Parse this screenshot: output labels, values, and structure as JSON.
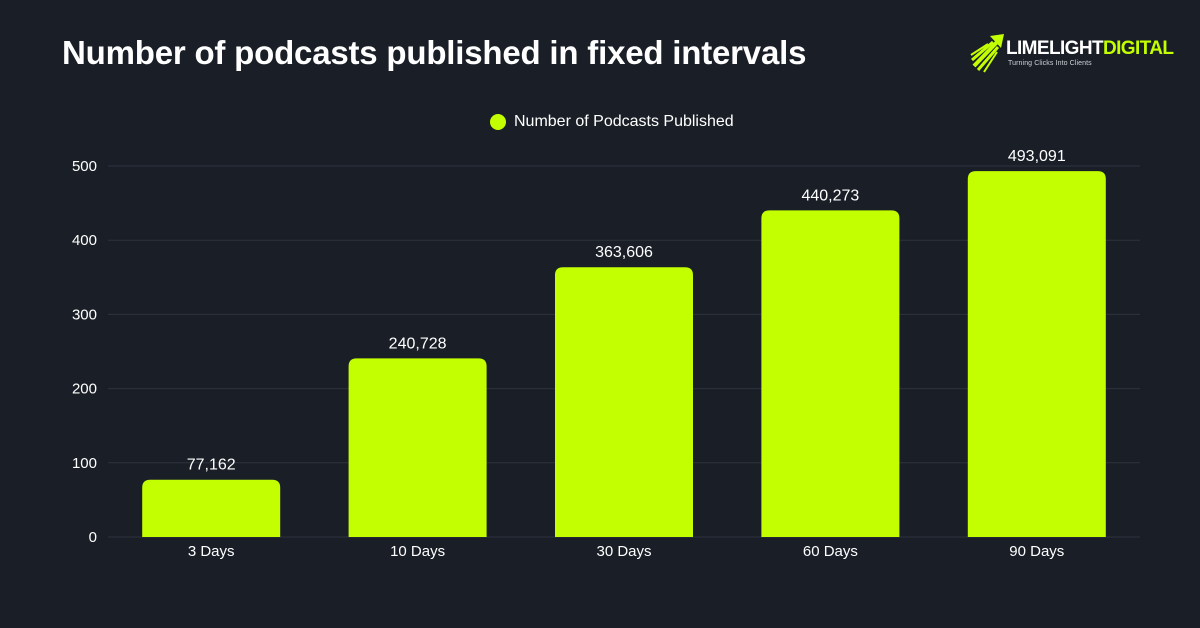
{
  "title": "Number of podcasts published in fixed intervals",
  "logo": {
    "name_white": "LIMELIGHT",
    "name_green": "DIGITAL",
    "tagline": "Turning Clicks Into Clients",
    "icon": "rocket-arrow-icon"
  },
  "colors": {
    "background": "#1a1f27",
    "bar": "#c3ff00",
    "grid": "#2c323c",
    "text": "#ffffff"
  },
  "chart_data": {
    "type": "bar",
    "title": "Number of podcasts published in fixed intervals",
    "categories": [
      "3 Days",
      "10 Days",
      "30 Days",
      "60 Days",
      "90 Days"
    ],
    "series": [
      {
        "name": "Number of Podcasts Published",
        "values": [
          77162,
          240728,
          363606,
          440273,
          493091
        ],
        "data_labels": [
          "77,162",
          "240,728",
          "363,606",
          "440,273",
          "493,091"
        ]
      }
    ],
    "yticks": [
      0,
      100,
      200,
      300,
      400,
      500
    ],
    "ylim": [
      0,
      500000
    ],
    "ytick_scale": 1000,
    "xlabel": "",
    "ylabel": "",
    "grid": true,
    "legend": "top-center"
  }
}
